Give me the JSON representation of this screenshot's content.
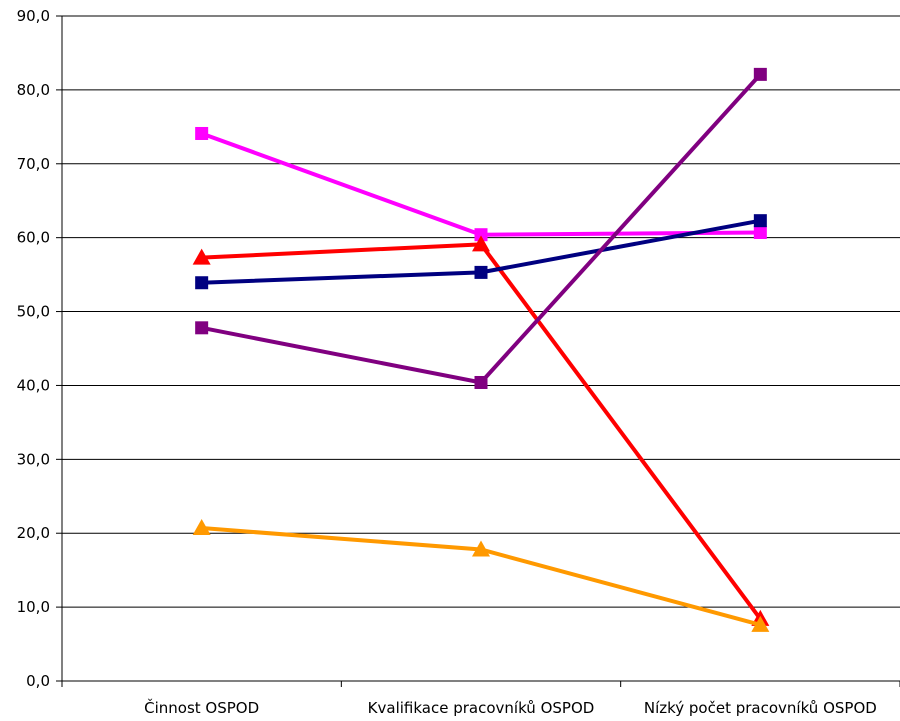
{
  "chart_data": {
    "type": "line",
    "categories": [
      "Činnost OSPOD",
      "Kvalifikace pracovníků OSPOD",
      "Nízký počet pracovníků OSPOD"
    ],
    "ylim": [
      0,
      90
    ],
    "yticks": [
      "0,0",
      "10,0",
      "20,0",
      "30,0",
      "40,0",
      "50,0",
      "60,0",
      "70,0",
      "80,0",
      "90,0"
    ],
    "grid": true,
    "legend": "none",
    "series": [
      {
        "color": "#ff00ff",
        "marker": "square",
        "values": [
          74.1,
          60.4,
          60.7
        ]
      },
      {
        "color": "#ff0000",
        "marker": "triangle",
        "values": [
          57.3,
          59.1,
          8.4
        ]
      },
      {
        "color": "#000080",
        "marker": "square",
        "values": [
          53.9,
          55.3,
          62.3
        ]
      },
      {
        "color": "#800080",
        "marker": "square",
        "values": [
          47.8,
          40.4,
          82.1
        ]
      },
      {
        "color": "#ff9900",
        "marker": "triangle",
        "values": [
          20.7,
          17.8,
          7.6
        ]
      }
    ]
  }
}
